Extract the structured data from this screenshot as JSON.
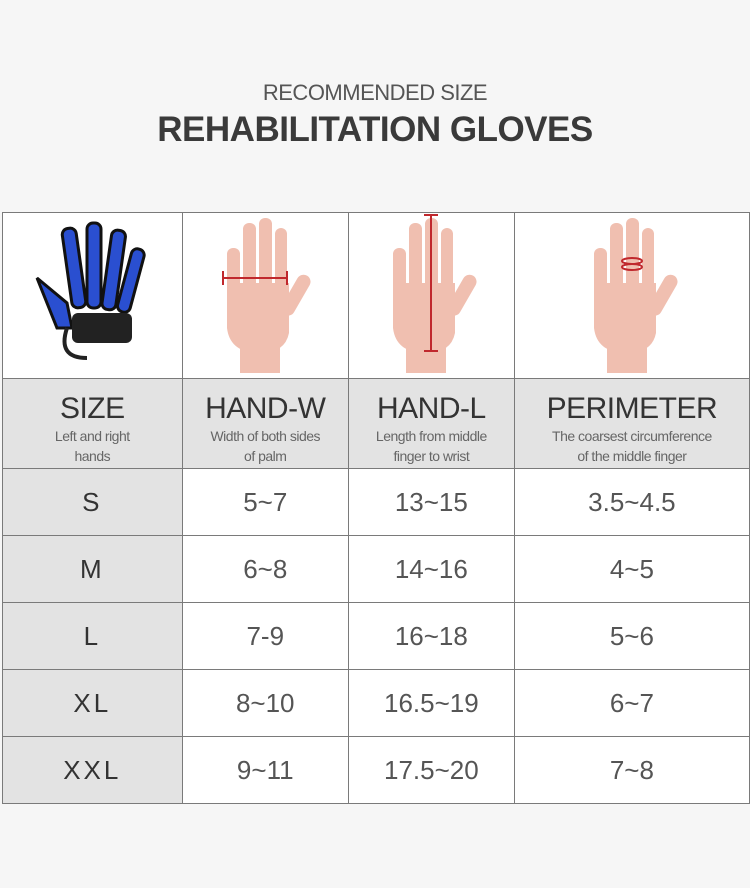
{
  "header": {
    "subtitle": "RECOMMENDED SIZE",
    "title": "REHABILITATION GLOVES"
  },
  "columns": [
    {
      "title": "SIZE",
      "desc1": "Left and right",
      "desc2": "hands"
    },
    {
      "title": "HAND-W",
      "desc1": "Width of both sides",
      "desc2": "of palm"
    },
    {
      "title": "HAND-L",
      "desc1": "Length from middle",
      "desc2": "finger to wrist"
    },
    {
      "title": "PERIMETER",
      "desc1": "The coarsest circumference",
      "desc2": "of the middle finger"
    }
  ],
  "rows": [
    [
      "S",
      "5~7",
      "13~15",
      "3.5~4.5"
    ],
    [
      "M",
      "6~8",
      "14~16",
      "4~5"
    ],
    [
      "L",
      "7-9",
      "16~18",
      "5~6"
    ],
    [
      "XL",
      "8~10",
      "16.5~19",
      "6~7"
    ],
    [
      "XXL",
      "9~11",
      "17.5~20",
      "7~8"
    ]
  ],
  "colors": {
    "glove": "#2a4fd0",
    "measure": "#c0282d",
    "skin": "#f0bfb0"
  }
}
